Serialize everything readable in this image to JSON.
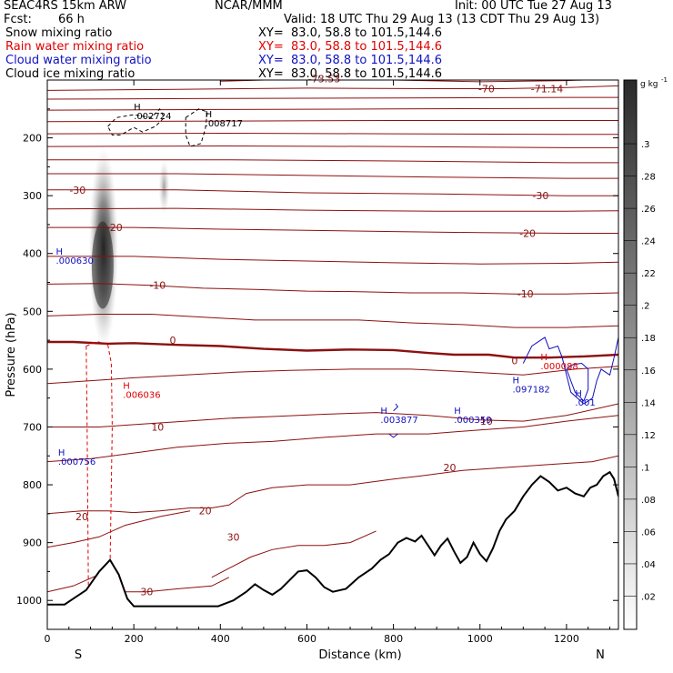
{
  "header": {
    "model": "SEAC4RS 15km ARW",
    "center": "NCAR/MMM",
    "init": "Init: 00 UTC Tue 27 Aug 13",
    "fcst_label": "Fcst:",
    "fcst_value": "66 h",
    "valid": "Valid: 18 UTC Thu 29 Aug 13 (13 CDT Thu 29 Aug 13)"
  },
  "fields": [
    {
      "name": "Snow mixing ratio",
      "xy": "XY=  83.0, 58.8 to 101.5,144.6",
      "color": "#000000"
    },
    {
      "name": "Rain water mixing ratio",
      "xy": "XY=  83.0, 58.8 to 101.5,144.6",
      "color": "#e00000"
    },
    {
      "name": "Cloud water mixing ratio",
      "xy": "XY=  83.0, 58.8 to 101.5,144.6",
      "color": "#1010c0"
    },
    {
      "name": "Cloud ice mixing ratio",
      "xy": "XY=  83.0, 58.8 to 101.5,144.6",
      "color": "#000000"
    }
  ],
  "chart_data": {
    "type": "heatmap",
    "description_fields": [
      "snow mixing ratio (shaded)",
      "temperature contours",
      "rain/cloud water/ice mixing ratio contours"
    ],
    "xlabel": "Distance (km)",
    "ylabel": "Pressure (hPa)",
    "xlim": [
      0,
      1320
    ],
    "ylim": [
      1050,
      100
    ],
    "x_ticks": [
      0,
      200,
      400,
      600,
      800,
      1000,
      1200
    ],
    "y_ticks": [
      200,
      300,
      400,
      500,
      600,
      700,
      800,
      900,
      1000
    ],
    "end_labels": {
      "left": "S",
      "right": "N"
    },
    "colorbar": {
      "unit": "g kg",
      "unit_exp": "-1",
      "ticks": [
        ".02",
        ".04",
        ".06",
        ".08",
        ".1",
        ".12",
        ".14",
        ".16",
        ".18",
        ".2",
        ".22",
        ".24",
        ".26",
        ".28",
        ".3"
      ]
    },
    "temperature_contours": [
      {
        "value": 30,
        "label": "30",
        "label_x": 430,
        "label_p": 890
      },
      {
        "value": 30,
        "label": "30",
        "label_x": 230,
        "label_p": 985
      },
      {
        "value": 20,
        "label": "20",
        "label_x": 80,
        "label_p": 855
      },
      {
        "value": 20,
        "label": "20",
        "label_x": 365,
        "label_p": 845
      },
      {
        "value": 20,
        "label": "20",
        "label_x": 930,
        "label_p": 770
      },
      {
        "value": 10,
        "label": "10",
        "label_x": 255,
        "label_p": 700
      },
      {
        "value": 10,
        "label": "10",
        "label_x": 1015,
        "label_p": 690
      },
      {
        "value": 0,
        "label": "0",
        "label_x": 290,
        "label_p": 550
      },
      {
        "value": 0,
        "label": "0",
        "label_x": 1080,
        "label_p": 585
      },
      {
        "value": -10,
        "label": "-10",
        "label_x": 255,
        "label_p": 455
      },
      {
        "value": -10,
        "label": "-10",
        "label_x": 1105,
        "label_p": 470
      },
      {
        "value": -20,
        "label": "-20",
        "label_x": 155,
        "label_p": 355
      },
      {
        "value": -20,
        "label": "-20",
        "label_x": 1110,
        "label_p": 365
      },
      {
        "value": -30,
        "label": "-30",
        "label_x": 70,
        "label_p": 290
      },
      {
        "value": -30,
        "label": "-30",
        "label_x": 1140,
        "label_p": 300
      },
      {
        "value": -70,
        "label": "-70",
        "label_x": 1015,
        "label_p": 115
      },
      {
        "value": -71.14,
        "label": "-71.14",
        "label_x": 1155,
        "label_p": 115
      },
      {
        "value": -73.53,
        "label": "-73.53",
        "label_x": 640,
        "label_p": 98
      }
    ],
    "maxima_labels": [
      {
        "field": "snow",
        "text": ".002724",
        "x": 200,
        "p": 168,
        "color": "#000000"
      },
      {
        "field": "cloud_ice",
        "text": ".008717",
        "x": 365,
        "p": 180,
        "color": "#000000"
      },
      {
        "field": "cloud_water",
        "text": ".000630",
        "x": 20,
        "p": 418,
        "color": "#1010c0"
      },
      {
        "field": "rain",
        "text": ".006036",
        "x": 175,
        "p": 650,
        "color": "#e00000"
      },
      {
        "field": "cloud_water",
        "text": ".000756",
        "x": 25,
        "p": 765,
        "color": "#1010c0"
      },
      {
        "field": "cloud_water",
        "text": ".003877",
        "x": 770,
        "p": 693,
        "color": "#1010c0"
      },
      {
        "field": "cloud_water",
        "text": ".000359",
        "x": 940,
        "p": 693,
        "color": "#1010c0"
      },
      {
        "field": "rain",
        "text": ".000088",
        "x": 1140,
        "p": 600,
        "color": "#e00000"
      },
      {
        "field": "cloud_water",
        "text": ".097182",
        "x": 1075,
        "p": 640,
        "color": "#1010c0"
      },
      {
        "field": "cloud_water",
        "text": ".001",
        "x": 1220,
        "p": 663,
        "color": "#1010c0"
      }
    ],
    "terrain_pressure": [
      [
        0,
        1007
      ],
      [
        40,
        1007
      ],
      [
        60,
        997
      ],
      [
        90,
        982
      ],
      [
        120,
        950
      ],
      [
        145,
        930
      ],
      [
        165,
        955
      ],
      [
        185,
        997
      ],
      [
        200,
        1010
      ],
      [
        300,
        1010
      ],
      [
        395,
        1010
      ],
      [
        430,
        1000
      ],
      [
        460,
        985
      ],
      [
        480,
        972
      ],
      [
        500,
        982
      ],
      [
        520,
        990
      ],
      [
        540,
        980
      ],
      [
        580,
        950
      ],
      [
        600,
        948
      ],
      [
        620,
        960
      ],
      [
        640,
        977
      ],
      [
        660,
        985
      ],
      [
        690,
        980
      ],
      [
        720,
        960
      ],
      [
        750,
        945
      ],
      [
        770,
        930
      ],
      [
        790,
        920
      ],
      [
        810,
        900
      ],
      [
        830,
        892
      ],
      [
        850,
        898
      ],
      [
        865,
        888
      ],
      [
        880,
        905
      ],
      [
        895,
        922
      ],
      [
        910,
        905
      ],
      [
        925,
        893
      ],
      [
        940,
        915
      ],
      [
        955,
        935
      ],
      [
        970,
        925
      ],
      [
        985,
        900
      ],
      [
        1000,
        920
      ],
      [
        1015,
        932
      ],
      [
        1030,
        910
      ],
      [
        1045,
        880
      ],
      [
        1060,
        860
      ],
      [
        1080,
        845
      ],
      [
        1100,
        820
      ],
      [
        1120,
        800
      ],
      [
        1140,
        785
      ],
      [
        1160,
        795
      ],
      [
        1180,
        810
      ],
      [
        1200,
        805
      ],
      [
        1220,
        815
      ],
      [
        1240,
        820
      ],
      [
        1255,
        805
      ],
      [
        1270,
        800
      ],
      [
        1285,
        785
      ],
      [
        1300,
        778
      ],
      [
        1310,
        790
      ],
      [
        1320,
        820
      ]
    ]
  }
}
